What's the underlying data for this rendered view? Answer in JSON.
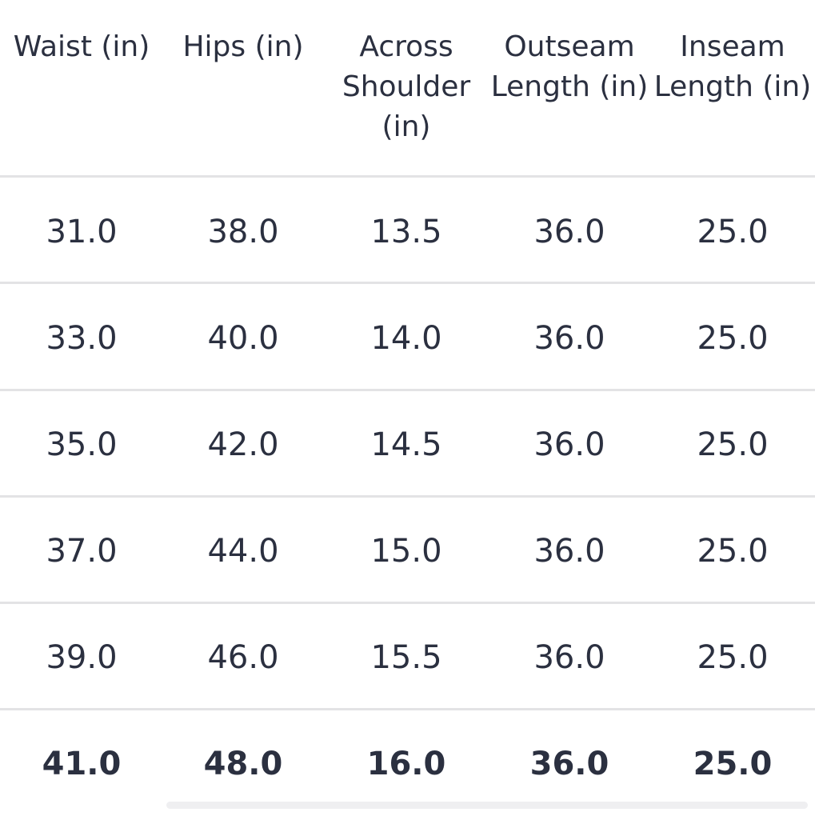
{
  "table": {
    "headers": [
      "Waist (in)",
      "Hips (in)",
      "Across\nShoulder\n(in)",
      "Outseam\nLength (in)",
      "Inseam\nLength (in)"
    ],
    "rows": [
      [
        "31.0",
        "38.0",
        "13.5",
        "36.0",
        "25.0"
      ],
      [
        "33.0",
        "40.0",
        "14.0",
        "36.0",
        "25.0"
      ],
      [
        "35.0",
        "42.0",
        "14.5",
        "36.0",
        "25.0"
      ],
      [
        "37.0",
        "44.0",
        "15.0",
        "36.0",
        "25.0"
      ],
      [
        "39.0",
        "46.0",
        "15.5",
        "36.0",
        "25.0"
      ],
      [
        "41.0",
        "48.0",
        "16.0",
        "36.0",
        "25.0"
      ]
    ],
    "bold_row_index": 5
  },
  "colors": {
    "text": "#2b3040",
    "divider": "#e3e3e5",
    "scrollbar": "#efeff1"
  }
}
